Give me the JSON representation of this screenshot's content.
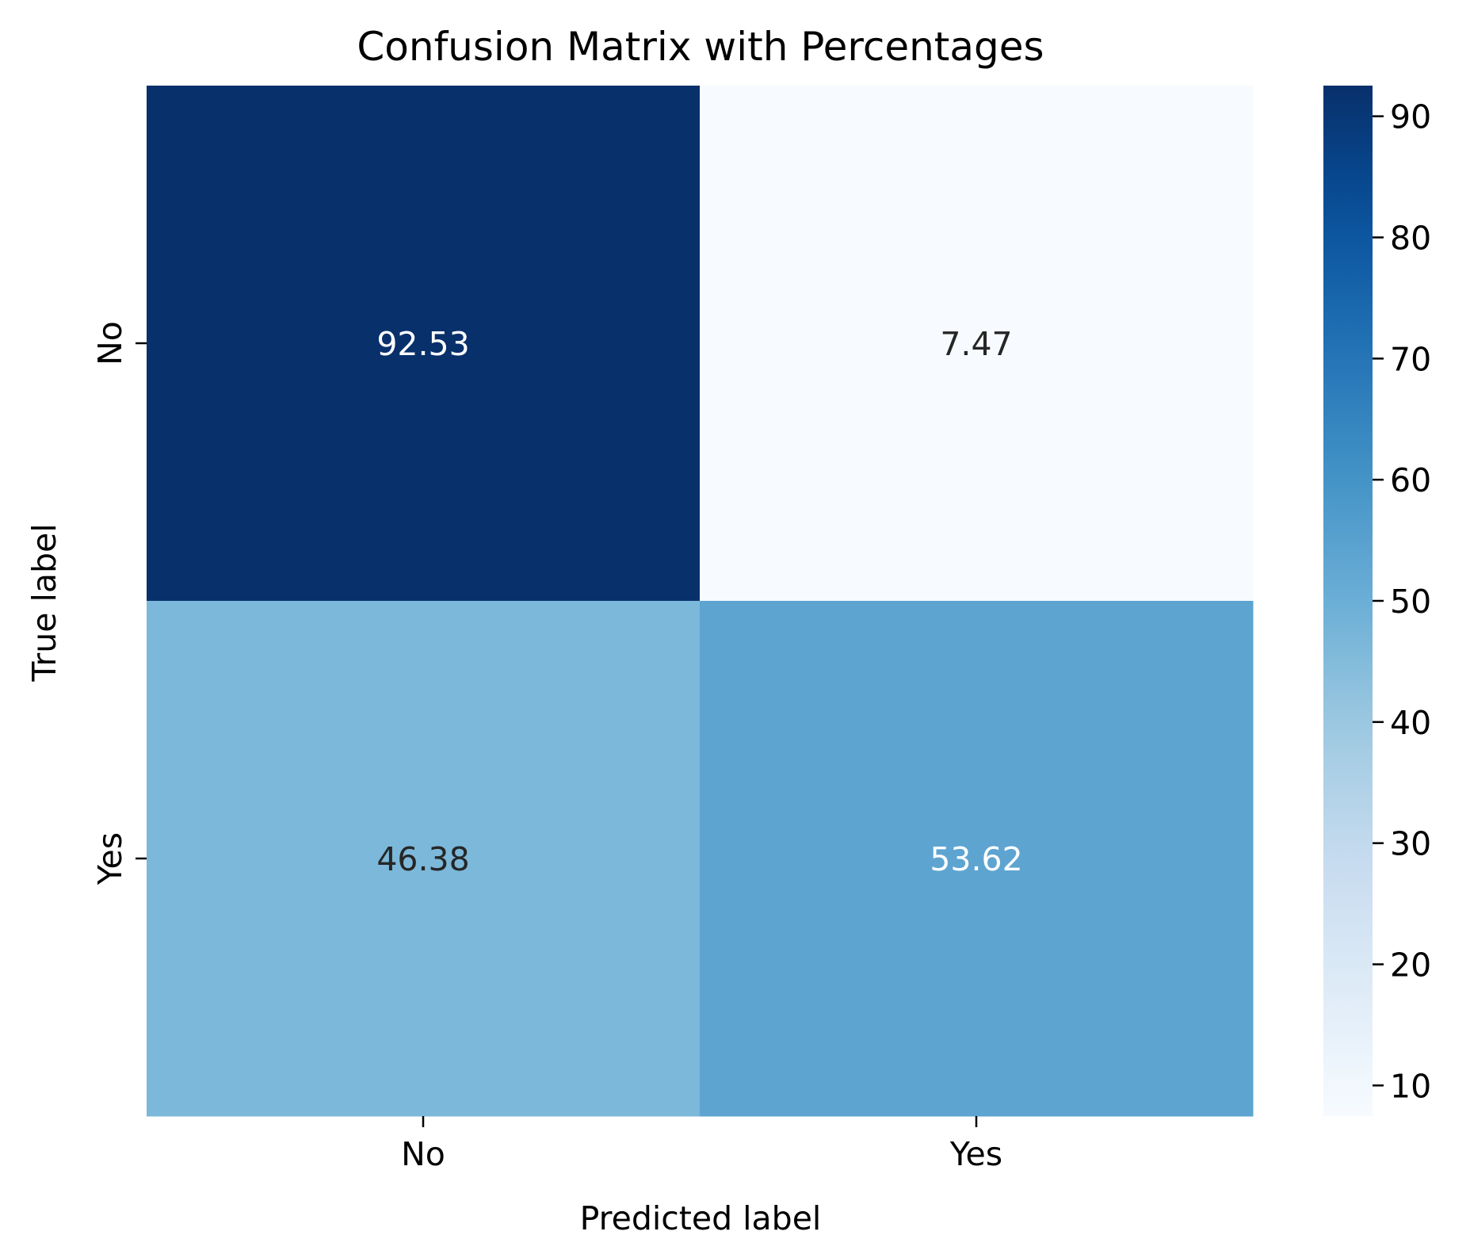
{
  "chart_data": {
    "type": "heatmap",
    "title": "Confusion Matrix with Percentages",
    "xlabel": "Predicted label",
    "ylabel": "True label",
    "x_categories": [
      "No",
      "Yes"
    ],
    "y_categories": [
      "No",
      "Yes"
    ],
    "values": [
      [
        92.53,
        7.47
      ],
      [
        46.38,
        53.62
      ]
    ],
    "cell_labels": [
      [
        "92.53",
        "7.47"
      ],
      [
        "46.38",
        "53.62"
      ]
    ],
    "colormap": "Blues",
    "colorbar": {
      "range": [
        7.47,
        92.53
      ],
      "ticks": [
        10,
        20,
        30,
        40,
        50,
        60,
        70,
        80,
        90
      ],
      "tick_labels": [
        "10",
        "20",
        "30",
        "40",
        "50",
        "60",
        "70",
        "80",
        "90"
      ]
    },
    "grid": false,
    "colors": {
      "cmap_low": "#f7fbff",
      "cmap_high": "#08306b",
      "annotation_light": "#ffffff",
      "annotation_dark": "#262626",
      "text": "#000000"
    }
  }
}
